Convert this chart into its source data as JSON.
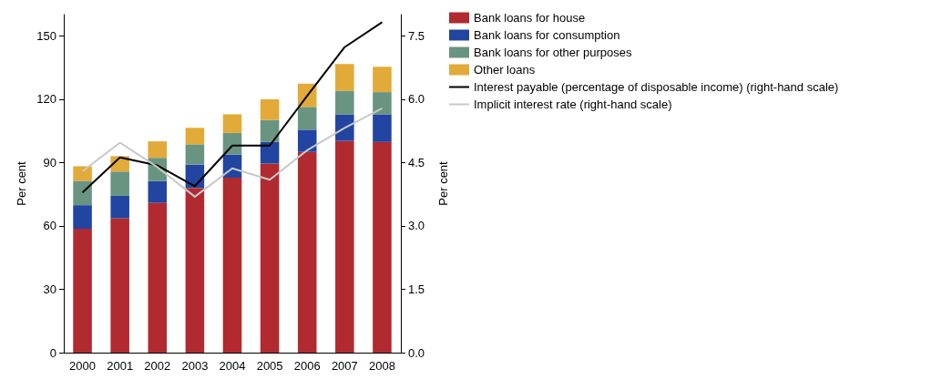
{
  "chart_data": {
    "type": "bar",
    "stacked": true,
    "categories": [
      "2000",
      "2001",
      "2002",
      "2003",
      "2004",
      "2005",
      "2006",
      "2007",
      "2008"
    ],
    "series": [
      {
        "name": "Bank loans for house",
        "color": "#b02a30",
        "values": [
          58.6,
          63.6,
          70.9,
          78.0,
          82.8,
          89.5,
          95.0,
          100.2,
          99.7
        ]
      },
      {
        "name": "Bank loans for consumption",
        "color": "#2145a0",
        "values": [
          11.2,
          10.6,
          10.3,
          11.0,
          10.9,
          10.2,
          10.5,
          12.4,
          13.1
        ]
      },
      {
        "name": "Bank loans for other purposes",
        "color": "#6a9482",
        "values": [
          11.5,
          11.5,
          11.0,
          9.6,
          10.3,
          10.4,
          10.8,
          11.4,
          10.5
        ]
      },
      {
        "name": "Other loans",
        "color": "#e2aa38",
        "values": [
          6.9,
          7.3,
          7.8,
          7.8,
          8.8,
          9.8,
          11.0,
          12.6,
          12.0
        ]
      },
      {
        "name": "Interest payable (percentage of disposable income) (right-hand scale)",
        "type": "line",
        "axis": "y2",
        "color": "#000000",
        "values": [
          3.79,
          4.62,
          4.43,
          3.94,
          4.9,
          4.9,
          6.08,
          7.23,
          7.82
        ]
      },
      {
        "name": "Implicit interest rate (right-hand scale)",
        "type": "line",
        "axis": "y2",
        "color": "#c8c8c8",
        "values": [
          4.29,
          4.97,
          4.39,
          3.69,
          4.36,
          4.09,
          4.79,
          5.32,
          5.78
        ]
      }
    ],
    "ylabel": "Per cent",
    "y2label": "Per cent",
    "ylim": [
      0,
      160
    ],
    "yticks": [
      0,
      30,
      60,
      90,
      120,
      150
    ],
    "y2lim": [
      0,
      8
    ],
    "y2ticks": [
      {
        "value": 0,
        "label": "0.0"
      },
      {
        "value": 1.5,
        "label": "1.5"
      },
      {
        "value": 3,
        "label": "3.0"
      },
      {
        "value": 4.5,
        "label": "4.5"
      },
      {
        "value": 6,
        "label": "6.0"
      },
      {
        "value": 7.5,
        "label": "7.5"
      }
    ],
    "grid": false,
    "legend": "right",
    "marker": "none",
    "line_style": "solid"
  }
}
